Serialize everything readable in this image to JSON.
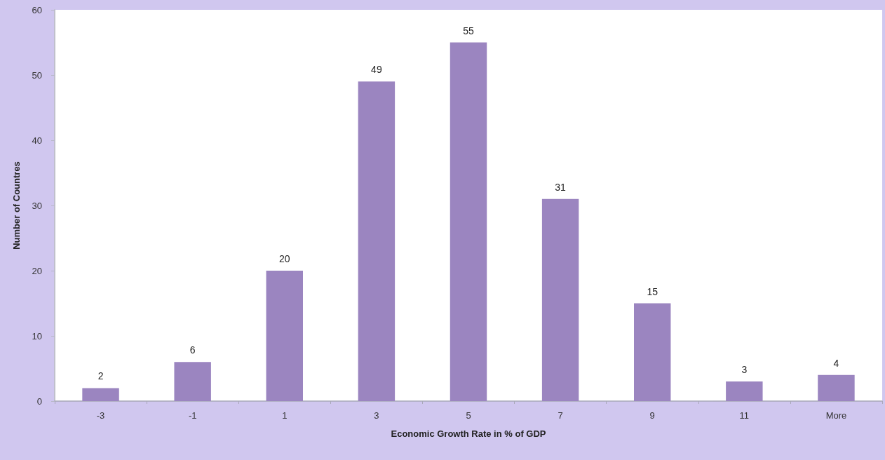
{
  "chart_data": {
    "type": "bar",
    "xlabel": "Economic Growth Rate in % of GDP",
    "ylabel": "Number of Countres",
    "categories": [
      "-3",
      "-1",
      "1",
      "3",
      "5",
      "7",
      "9",
      "11",
      "More"
    ],
    "values": [
      2,
      6,
      20,
      49,
      55,
      31,
      15,
      3,
      4
    ],
    "color": "#9b85c0",
    "ylim": [
      0,
      60
    ],
    "yticks": [
      0,
      10,
      20,
      30,
      40,
      50,
      60
    ],
    "data_labels": true
  }
}
